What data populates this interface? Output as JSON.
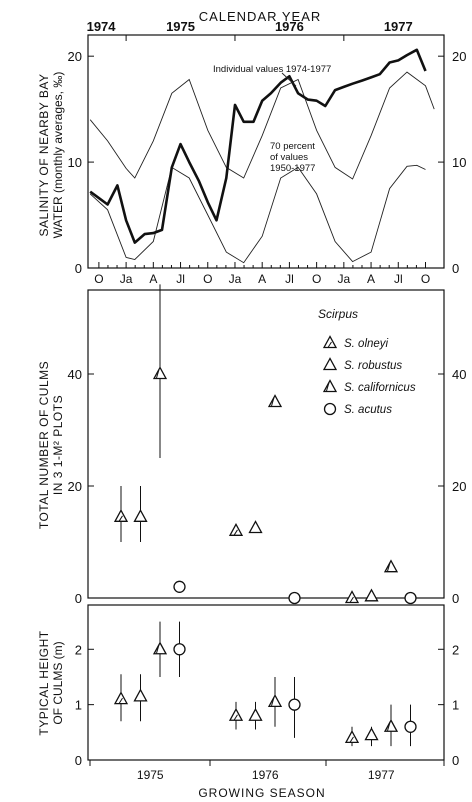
{
  "top_label": "CALENDAR YEAR",
  "bottom_label": "GROWING SEASON",
  "chart_data": [
    {
      "type": "line",
      "ylabel_line1": "SALINITY OF NEARBY BAY",
      "ylabel_line2": "WATER (monthly averages, ‰)",
      "ylim": [
        0,
        22
      ],
      "yticks": [
        0,
        10,
        20
      ],
      "xlim": [
        1974.65,
        1977.92
      ],
      "month_ticks": [
        "O",
        "Ja",
        "A",
        "Jl",
        "O",
        "Ja",
        "A",
        "Jl",
        "O",
        "Ja",
        "A",
        "Jl",
        "O"
      ],
      "year_ticks": [
        "1974",
        "1975",
        "1976",
        "1977"
      ],
      "annotations": [
        "Individual values 1974-1977",
        "70 percent",
        "of values",
        "1950-1977"
      ],
      "series": [
        {
          "name": "Individual values 1974-1977",
          "x": [
            1974.67,
            1974.75,
            1974.83,
            1974.92,
            1975.0,
            1975.08,
            1975.17,
            1975.25,
            1975.33,
            1975.42,
            1975.5,
            1975.58,
            1975.67,
            1975.75,
            1975.83,
            1975.92,
            1976.0,
            1976.08,
            1976.17,
            1976.25,
            1976.33,
            1976.42,
            1976.5,
            1976.58,
            1976.67,
            1976.75,
            1976.83,
            1976.92,
            1977.0,
            1977.08,
            1977.17,
            1977.25,
            1977.33,
            1977.42,
            1977.5,
            1977.58,
            1977.67,
            1977.75
          ],
          "y": [
            7.2,
            6.6,
            6.0,
            7.8,
            4.5,
            2.4,
            3.2,
            3.3,
            3.6,
            9.5,
            11.7,
            10.0,
            8.2,
            6.2,
            4.5,
            8.5,
            15.4,
            13.8,
            13.8,
            15.8,
            16.5,
            17.5,
            18.1,
            16.5,
            15.9,
            15.8,
            15.3,
            16.8,
            17.1,
            17.4,
            17.7,
            18.0,
            18.3,
            19.4,
            19.6,
            20.1,
            20.6,
            18.6
          ]
        },
        {
          "name": "70 percent of values 1950-1977 (upper)",
          "x": [
            1974.67,
            1974.83,
            1975.0,
            1975.08,
            1975.25,
            1975.42,
            1975.58,
            1975.75,
            1975.92,
            1976.08,
            1976.25,
            1976.42,
            1976.58,
            1976.75,
            1976.92,
            1977.08,
            1977.25,
            1977.42,
            1977.58,
            1977.75,
            1977.83
          ],
          "y": [
            14.0,
            12.0,
            9.4,
            8.5,
            12.0,
            16.5,
            17.8,
            13.0,
            9.5,
            8.5,
            12.5,
            17.0,
            17.8,
            13.0,
            9.5,
            8.4,
            12.5,
            17.0,
            18.5,
            17.2,
            15.0
          ]
        },
        {
          "name": "70 percent of values 1950-1977 (lower)",
          "x": [
            1974.67,
            1974.83,
            1975.0,
            1975.08,
            1975.25,
            1975.42,
            1975.58,
            1975.75,
            1975.92,
            1976.08,
            1976.25,
            1976.42,
            1976.58,
            1976.75,
            1976.92,
            1977.08,
            1977.25,
            1977.42,
            1977.58,
            1977.67,
            1977.75
          ],
          "y": [
            7.0,
            5.5,
            1.0,
            0.8,
            2.5,
            9.5,
            8.5,
            5.0,
            1.5,
            0.5,
            3.0,
            8.5,
            9.5,
            7.0,
            2.5,
            0.6,
            1.5,
            7.5,
            9.6,
            9.7,
            9.3
          ]
        }
      ]
    },
    {
      "type": "scatter",
      "ylabel_line1": "TOTAL NUMBER OF CULMS",
      "ylabel_line2": "IN 3 1-M² PLOTS",
      "ylim": [
        0,
        55
      ],
      "yticks": [
        0,
        20,
        40
      ],
      "legend_title": "Scirpus",
      "legend_placement": "top-right",
      "legend": [
        "S. olneyi",
        "S. robustus",
        "S. californicus",
        "S. acutus"
      ],
      "points": [
        {
          "season": 1975,
          "species": "S. olneyi",
          "value": 14.5,
          "low": 10,
          "high": 20
        },
        {
          "season": 1975,
          "species": "S. robustus",
          "value": 14.5,
          "low": 10,
          "high": 20
        },
        {
          "season": 1975,
          "species": "S. californicus",
          "value": 40,
          "low": 25,
          "high": 56
        },
        {
          "season": 1975,
          "species": "S. acutus",
          "value": 2,
          "low": 2,
          "high": 2
        },
        {
          "season": 1976,
          "species": "S. olneyi",
          "value": 12,
          "low": 12,
          "high": 12
        },
        {
          "season": 1976,
          "species": "S. robustus",
          "value": 12.5,
          "low": 12.5,
          "high": 12.5
        },
        {
          "season": 1976,
          "species": "S. californicus",
          "value": 35,
          "low": 35,
          "high": 35
        },
        {
          "season": 1976,
          "species": "S. acutus",
          "value": 0,
          "low": 0,
          "high": 0
        },
        {
          "season": 1977,
          "species": "S. olneyi",
          "value": 0,
          "low": 0,
          "high": 0
        },
        {
          "season": 1977,
          "species": "S. robustus",
          "value": 0.3,
          "low": 0.3,
          "high": 0.3
        },
        {
          "season": 1977,
          "species": "S. californicus",
          "value": 5.5,
          "low": 5.5,
          "high": 5.5
        },
        {
          "season": 1977,
          "species": "S. acutus",
          "value": 0,
          "low": 0,
          "high": 0
        }
      ]
    },
    {
      "type": "scatter",
      "ylabel_line1": "TYPICAL HEIGHT",
      "ylabel_line2": "OF CULMS (m)",
      "ylim": [
        0,
        2.8
      ],
      "yticks": [
        0,
        1,
        2
      ],
      "categories": [
        "1975",
        "1976",
        "1977"
      ],
      "points": [
        {
          "season": 1975,
          "species": "S. olneyi",
          "value": 1.1,
          "low": 0.7,
          "high": 1.55
        },
        {
          "season": 1975,
          "species": "S. robustus",
          "value": 1.15,
          "low": 0.7,
          "high": 1.55
        },
        {
          "season": 1975,
          "species": "S. californicus",
          "value": 2.0,
          "low": 1.5,
          "high": 2.5
        },
        {
          "season": 1975,
          "species": "S. acutus",
          "value": 2.0,
          "low": 1.5,
          "high": 2.5
        },
        {
          "season": 1976,
          "species": "S. olneyi",
          "value": 0.8,
          "low": 0.55,
          "high": 1.05
        },
        {
          "season": 1976,
          "species": "S. robustus",
          "value": 0.8,
          "low": 0.55,
          "high": 1.05
        },
        {
          "season": 1976,
          "species": "S. californicus",
          "value": 1.05,
          "low": 0.6,
          "high": 1.5
        },
        {
          "season": 1976,
          "species": "S. acutus",
          "value": 1.0,
          "low": 0.4,
          "high": 1.5
        },
        {
          "season": 1977,
          "species": "S. olneyi",
          "value": 0.4,
          "low": 0.25,
          "high": 0.6
        },
        {
          "season": 1977,
          "species": "S. robustus",
          "value": 0.45,
          "low": 0.25,
          "high": 0.6
        },
        {
          "season": 1977,
          "species": "S. californicus",
          "value": 0.6,
          "low": 0.25,
          "high": 1.0
        },
        {
          "season": 1977,
          "species": "S. acutus",
          "value": 0.6,
          "low": 0.25,
          "high": 1.0
        }
      ]
    }
  ]
}
